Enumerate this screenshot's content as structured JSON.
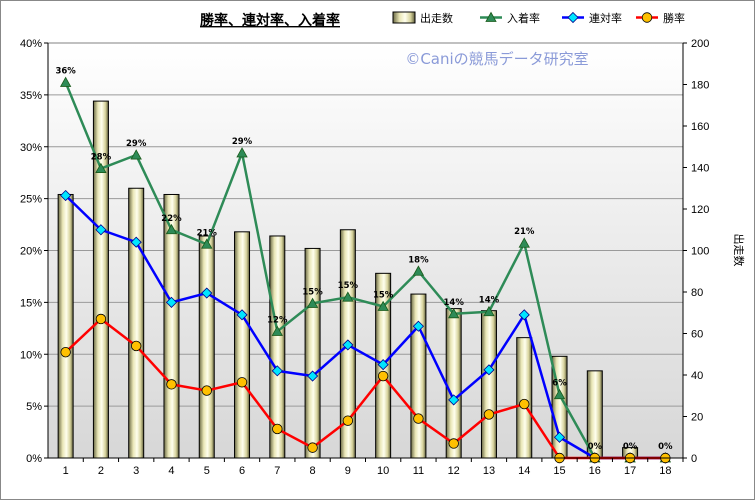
{
  "chart_data": {
    "type": "bar+line",
    "title": "勝率、連対率、入着率",
    "watermark": "©Caniの競馬データ研究室",
    "categories": [
      "1",
      "2",
      "3",
      "4",
      "5",
      "6",
      "7",
      "8",
      "9",
      "10",
      "11",
      "12",
      "13",
      "14",
      "15",
      "16",
      "17",
      "18"
    ],
    "bar_series": {
      "name": "出走数",
      "axis": "right",
      "values": [
        127,
        172,
        130,
        127,
        107,
        109,
        107,
        101,
        110,
        89,
        79,
        72,
        71,
        58,
        49,
        42,
        5,
        0
      ]
    },
    "line_series": [
      {
        "name": "入着率",
        "color": "#2e8b57",
        "marker": "triangle",
        "values": [
          36.2,
          27.9,
          29.2,
          22.0,
          20.6,
          29.4,
          12.2,
          14.9,
          15.5,
          14.6,
          18.0,
          13.9,
          14.1,
          20.7,
          6.1,
          0.0,
          0.0,
          0.0
        ]
      },
      {
        "name": "連対率",
        "color": "#0000ff",
        "marker": "diamond",
        "values": [
          25.3,
          22.0,
          20.8,
          15.0,
          15.9,
          13.8,
          8.4,
          7.9,
          10.9,
          9.0,
          12.7,
          5.6,
          8.5,
          13.8,
          2.0,
          0.0,
          0.0,
          0.0
        ]
      },
      {
        "name": "勝率",
        "color": "#ff0000",
        "marker": "circle",
        "values": [
          10.2,
          13.4,
          10.8,
          7.1,
          6.5,
          7.3,
          2.8,
          1.0,
          3.6,
          7.9,
          3.8,
          1.4,
          4.2,
          5.2,
          0.0,
          0.0,
          0.0,
          0.0
        ]
      }
    ],
    "data_labels": [
      "36%",
      "28%",
      "29%",
      "22%",
      "21%",
      "29%",
      "12%",
      "15%",
      "15%",
      "15%",
      "18%",
      "14%",
      "14%",
      "21%",
      "6%",
      "0%",
      "0%",
      "0%"
    ],
    "y_left": {
      "min": 0,
      "max": 40,
      "step": 5,
      "ticks": [
        "0%",
        "5%",
        "10%",
        "15%",
        "20%",
        "25%",
        "30%",
        "35%",
        "40%"
      ]
    },
    "y_right": {
      "label": "出走数",
      "min": 0,
      "max": 200,
      "step": 20,
      "ticks": [
        "0",
        "20",
        "40",
        "60",
        "80",
        "100",
        "120",
        "140",
        "160",
        "180",
        "200"
      ]
    },
    "legend": [
      "出走数",
      "入着率",
      "連対率",
      "勝率"
    ],
    "legend_position": "top-right",
    "grid": true
  }
}
